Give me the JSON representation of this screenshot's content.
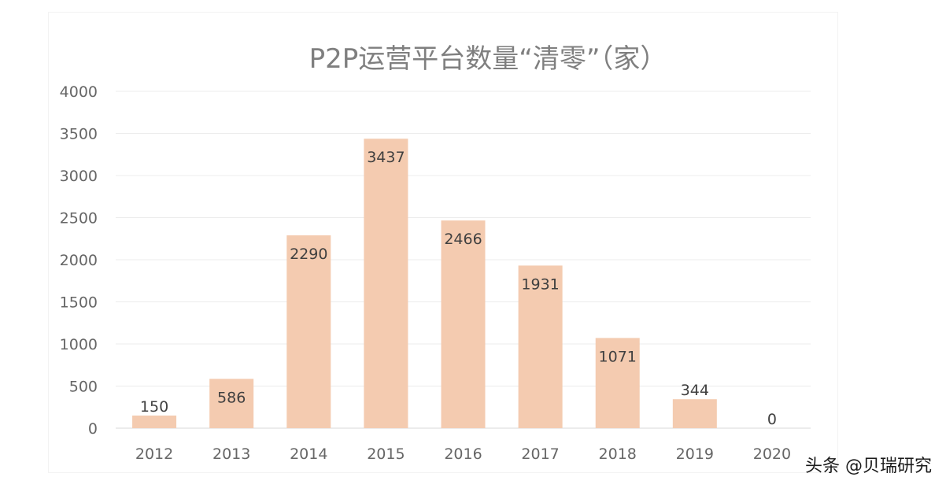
{
  "watermark": "头条 @贝瑞研究",
  "colors": {
    "bar": "#f4cbb0",
    "grid": "#ececec",
    "axis": "#d9d9d9"
  },
  "chart_data": {
    "type": "bar",
    "title": "P2P运营平台数量“清零”（家）",
    "categories": [
      "2012",
      "2013",
      "2014",
      "2015",
      "2016",
      "2017",
      "2018",
      "2019",
      "2020"
    ],
    "values": [
      150,
      586,
      2290,
      3437,
      2466,
      1931,
      1071,
      344,
      0
    ],
    "ylim": [
      0,
      4000
    ],
    "yticks": [
      "0",
      "500",
      "1000",
      "1500",
      "2000",
      "2500",
      "3000",
      "3500",
      "4000"
    ],
    "xlabel": "",
    "ylabel": "",
    "grid": true,
    "legend": "none"
  }
}
